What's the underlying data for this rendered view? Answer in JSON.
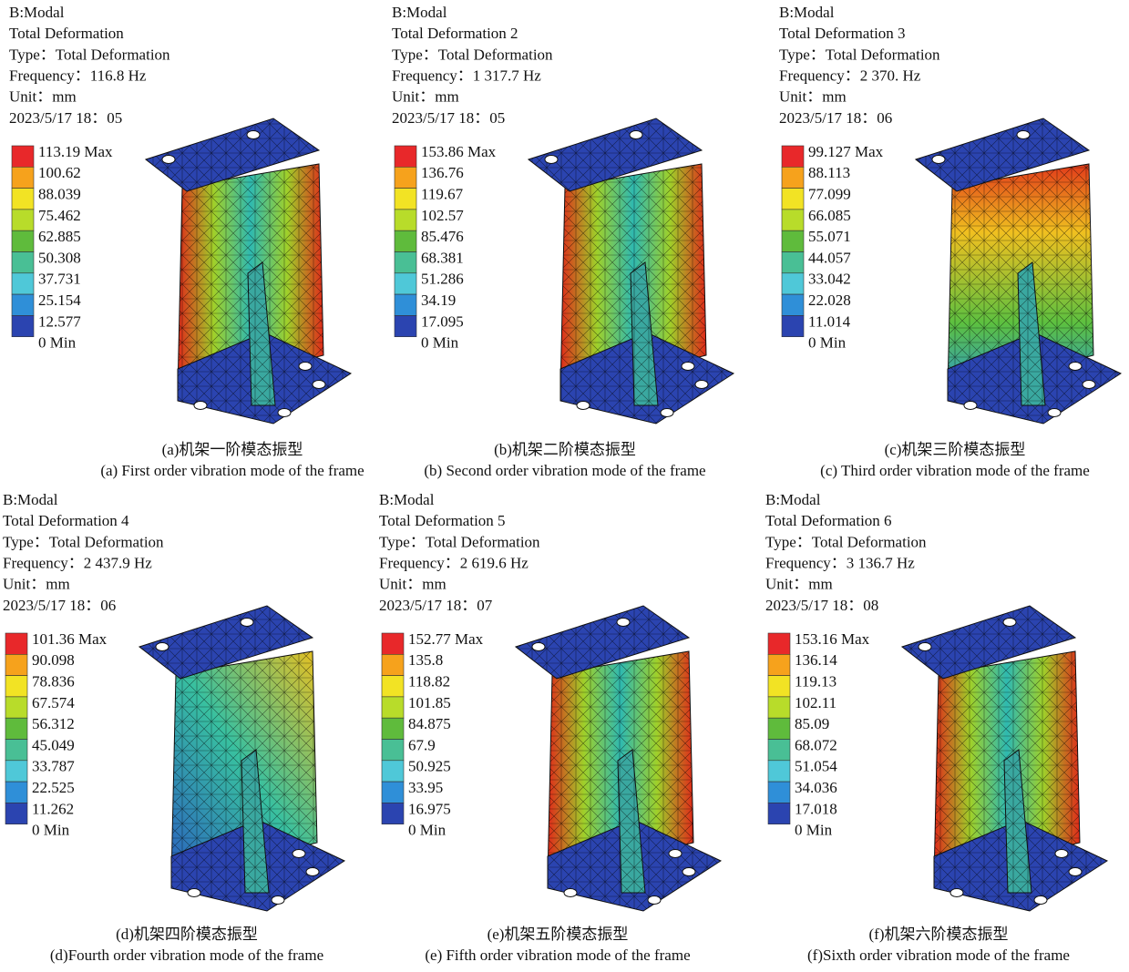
{
  "panels": [
    {
      "lines": [
        "B:Modal",
        "Total Deformation",
        "Type：Total Deformation",
        "Frequency：116.8 Hz",
        "Unit：mm",
        "2023/5/17 18：05"
      ],
      "legend": [
        "113.19 Max",
        "100.62",
        "88.039",
        "75.462",
        "62.885",
        "50.308",
        "37.731",
        "25.154",
        "12.577",
        "0 Min"
      ],
      "caption_cn": "(a)机架一阶模态振型",
      "caption_en": "(a) First order vibration mode of the frame"
    },
    {
      "lines": [
        "B:Modal",
        "Total Deformation 2",
        "Type：Total Deformation",
        "Frequency：1 317.7 Hz",
        "Unit：mm",
        "2023/5/17 18：05"
      ],
      "legend": [
        "153.86 Max",
        "136.76",
        "119.67",
        "102.57",
        "85.476",
        "68.381",
        "51.286",
        "34.19",
        "17.095",
        "0 Min"
      ],
      "caption_cn": "(b)机架二阶模态振型",
      "caption_en": "(b) Second order vibration mode of the frame"
    },
    {
      "lines": [
        "B:Modal",
        "Total Deformation 3",
        "Type：Total Deformation",
        "Frequency：2 370. Hz",
        "Unit：mm",
        "2023/5/17 18：06"
      ],
      "legend": [
        "99.127 Max",
        "88.113",
        "77.099",
        "66.085",
        "55.071",
        "44.057",
        "33.042",
        "22.028",
        "11.014",
        "0 Min"
      ],
      "caption_cn": "(c)机架三阶模态振型",
      "caption_en": "(c) Third order vibration mode of the frame"
    },
    {
      "lines": [
        "B:Modal",
        "Total Deformation 4",
        "Type：Total Deformation",
        "Frequency：2 437.9 Hz",
        "Unit：mm",
        "2023/5/17 18：06"
      ],
      "legend": [
        "101.36 Max",
        "90.098",
        "78.836",
        "67.574",
        "56.312",
        "45.049",
        "33.787",
        "22.525",
        "11.262",
        "0 Min"
      ],
      "caption_cn": "(d)机架四阶模态振型",
      "caption_en": "(d)Fourth order vibration mode of the frame"
    },
    {
      "lines": [
        "B:Modal",
        "Total Deformation 5",
        "Type：Total Deformation",
        "Frequency：2 619.6 Hz",
        "Unit：mm",
        "2023/5/17 18：07"
      ],
      "legend": [
        "152.77 Max",
        "135.8",
        "118.82",
        "101.85",
        "84.875",
        "67.9",
        "50.925",
        "33.95",
        "16.975",
        "0 Min"
      ],
      "caption_cn": "(e)机架五阶模态振型",
      "caption_en": "(e) Fifth order vibration mode of the frame"
    },
    {
      "lines": [
        "B:Modal",
        "Total Deformation 6",
        "Type：Total Deformation",
        "Frequency：3 136.7 Hz",
        "Unit：mm",
        "2023/5/17 18：08"
      ],
      "legend": [
        "153.16 Max",
        "136.14",
        "119.13",
        "102.11",
        "85.09",
        "68.072",
        "51.054",
        "34.036",
        "17.018",
        "0 Min"
      ],
      "caption_cn": "(f)机架六阶模态振型",
      "caption_en": "(f)Sixth order vibration mode of the frame"
    }
  ]
}
